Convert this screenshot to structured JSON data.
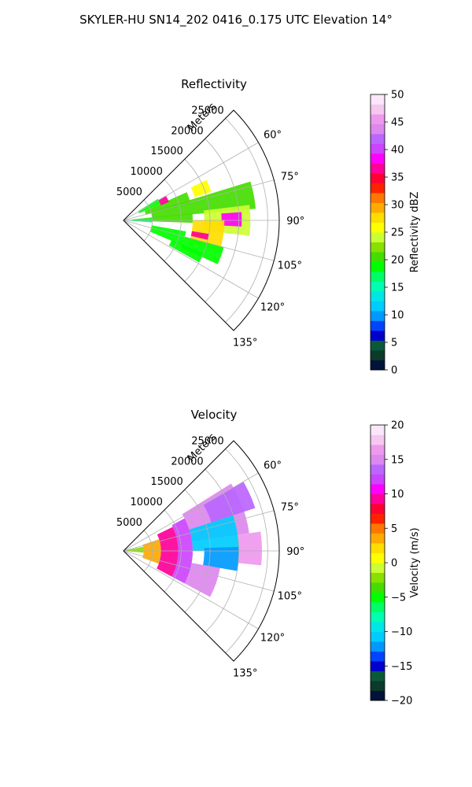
{
  "title": "SKYLER-HU  SN14_202  0416_0.175 UTC Elevation 14°",
  "chart_data": [
    {
      "type": "polar sector (radar PPI)",
      "title": "Reflectivity",
      "radial_label": "Meters",
      "range_ticks": [
        5000,
        10000,
        15000,
        20000,
        25000
      ],
      "range_tick_labels": [
        "5000",
        "10000",
        "15000",
        "20000",
        "25000"
      ],
      "rlim": [
        0,
        27000
      ],
      "azimuth_ticks": [
        60,
        75,
        90,
        105,
        120,
        135
      ],
      "azimuth_tick_labels": [
        "60°",
        "75°",
        "90°",
        "105°",
        "120°",
        "135°"
      ],
      "azimuth_range": [
        45,
        135
      ],
      "grid": true,
      "colorbar": {
        "label": "Reflectivity dBZ",
        "range": [
          0,
          50
        ],
        "ticks": [
          0,
          5,
          10,
          15,
          20,
          25,
          30,
          35,
          40,
          45,
          50
        ],
        "tick_labels": [
          "0",
          "5",
          "10",
          "15",
          "20",
          "25",
          "30",
          "35",
          "40",
          "45",
          "50"
        ],
        "colors": [
          "#02133a",
          "#0b3b2a",
          "#0a5a3a",
          "#0000cc",
          "#0044ff",
          "#0099ff",
          "#00ccff",
          "#00e6e6",
          "#00ffb0",
          "#00ff66",
          "#00ff00",
          "#44dd00",
          "#88e000",
          "#ccff33",
          "#ffff00",
          "#ffdd00",
          "#ffaa00",
          "#ff7700",
          "#ff2200",
          "#ff0033",
          "#ff0099",
          "#ff00ff",
          "#cc44ff",
          "#bb66ff",
          "#dd88ee",
          "#ee99ee",
          "#f5c8f0",
          "#fbe6fa"
        ]
      },
      "data_cells": [
        {
          "az_range": [
            58,
            66
          ],
          "r_range": [
            3000,
            7000
          ],
          "value": 18
        },
        {
          "az_range": [
            66,
            76
          ],
          "r_range": [
            4000,
            12000
          ],
          "value": 20
        },
        {
          "az_range": [
            73,
            85
          ],
          "r_range": [
            5000,
            23000
          ],
          "value": 21
        },
        {
          "az_range": [
            84,
            92
          ],
          "r_range": [
            1500,
            12000
          ],
          "value": 20
        },
        {
          "az_range": [
            86,
            94
          ],
          "r_range": [
            0,
            5000
          ],
          "value": 17
        },
        {
          "az_range": [
            83,
            97
          ],
          "r_range": [
            14000,
            22000
          ],
          "value": 24
        },
        {
          "az_range": [
            86,
            93
          ],
          "r_range": [
            17000,
            20500
          ],
          "value": 38
        },
        {
          "az_range": [
            90,
            108
          ],
          "r_range": [
            12000,
            17500
          ],
          "value": 28
        },
        {
          "az_range": [
            99,
            103
          ],
          "r_range": [
            12000,
            15000
          ],
          "value": 36
        },
        {
          "az_range": [
            100,
            113
          ],
          "r_range": [
            5000,
            11000
          ],
          "value": 18
        },
        {
          "az_range": [
            105,
            115
          ],
          "r_range": [
            11000,
            18000
          ],
          "value": 18
        },
        {
          "az_range": [
            60,
            68
          ],
          "r_range": [
            7000,
            8500
          ],
          "value": 36
        },
        {
          "az_range": [
            64,
            72
          ],
          "r_range": [
            13000,
            16000
          ],
          "value": 26
        },
        {
          "az_range": [
            112,
            119
          ],
          "r_range": [
            9000,
            15000
          ],
          "value": 19
        }
      ]
    },
    {
      "type": "polar sector (radar PPI)",
      "title": "Velocity",
      "radial_label": "Meters",
      "range_ticks": [
        5000,
        10000,
        15000,
        20000,
        25000
      ],
      "range_tick_labels": [
        "5000",
        "10000",
        "15000",
        "20000",
        "25000"
      ],
      "rlim": [
        0,
        27000
      ],
      "azimuth_ticks": [
        60,
        75,
        90,
        105,
        120,
        135
      ],
      "azimuth_tick_labels": [
        "60°",
        "75°",
        "90°",
        "105°",
        "120°",
        "135°"
      ],
      "azimuth_range": [
        45,
        135
      ],
      "grid": true,
      "colorbar": {
        "label": "Velocity (m/s)",
        "range": [
          -20,
          20
        ],
        "ticks": [
          -20,
          -15,
          -10,
          -5,
          0,
          5,
          10,
          15,
          20
        ],
        "tick_labels": [
          "−20",
          "−15",
          "−10",
          "−5",
          "0",
          "5",
          "10",
          "15",
          "20"
        ],
        "colors": [
          "#02133a",
          "#0b3b2a",
          "#0a5a3a",
          "#0000cc",
          "#0044ff",
          "#0099ff",
          "#00ccff",
          "#00e6e6",
          "#00ffb0",
          "#00ff66",
          "#00ff00",
          "#44dd00",
          "#88e000",
          "#ccff33",
          "#ffff00",
          "#ffdd00",
          "#ffaa00",
          "#ff7700",
          "#ff2200",
          "#ff0033",
          "#ff0099",
          "#ff00ff",
          "#cc44ff",
          "#bb66ff",
          "#dd88ee",
          "#ee99ee",
          "#f5c8f0",
          "#fbe6fa"
        ]
      },
      "data_cells": [
        {
          "az_range": [
            78,
            95
          ],
          "r_range": [
            0,
            3500
          ],
          "value": -2
        },
        {
          "az_range": [
            72,
            110
          ],
          "r_range": [
            3500,
            6500
          ],
          "value": 4
        },
        {
          "az_range": [
            64,
            118
          ],
          "r_range": [
            6500,
            9500
          ],
          "value": 9
        },
        {
          "az_range": [
            62,
            118
          ],
          "r_range": [
            9500,
            12000
          ],
          "value": 12
        },
        {
          "az_range": [
            58,
            82
          ],
          "r_range": [
            12000,
            22000
          ],
          "value": 15
        },
        {
          "az_range": [
            100,
            118
          ],
          "r_range": [
            12000,
            17000
          ],
          "value": 15
        },
        {
          "az_range": [
            72,
            90
          ],
          "r_range": [
            12000,
            20000
          ],
          "value": -11
        },
        {
          "az_range": [
            88,
            100
          ],
          "r_range": [
            14000,
            20000
          ],
          "value": -12
        },
        {
          "az_range": [
            82,
            96
          ],
          "r_range": [
            20000,
            24000
          ],
          "value": 16
        },
        {
          "az_range": [
            60,
            72
          ],
          "r_range": [
            16000,
            24000
          ],
          "value": 14
        }
      ]
    }
  ]
}
